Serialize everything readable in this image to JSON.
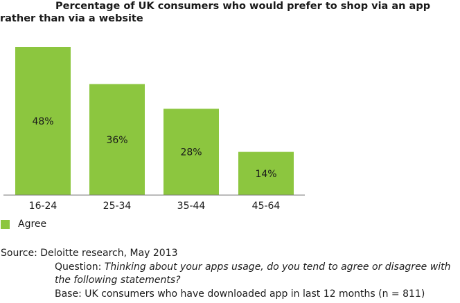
{
  "title": "Percentage of UK consumers who would prefer to shop via an app rather than via a website",
  "chart_data": {
    "type": "bar",
    "categories": [
      "16-24",
      "25-34",
      "35-44",
      "45-64"
    ],
    "series": [
      {
        "name": "Agree",
        "values": [
          48,
          36,
          28,
          14
        ]
      }
    ],
    "data_labels": [
      "48%",
      "36%",
      "28%",
      "14%"
    ],
    "ylim": [
      0,
      48
    ],
    "grid": false,
    "legend": "bottom-left",
    "bar_color": "#8cc63f"
  },
  "legend": {
    "label": "Agree",
    "color": "#8cc63f"
  },
  "source": {
    "line": "Source: Deloitte research, May 2013",
    "question_prefix": "Question: ",
    "question_text": "Thinking about your apps usage, do you tend to agree or disagree with the following statements?",
    "base": "Base: UK consumers who have downloaded app in last 12 months (n = 811)"
  }
}
